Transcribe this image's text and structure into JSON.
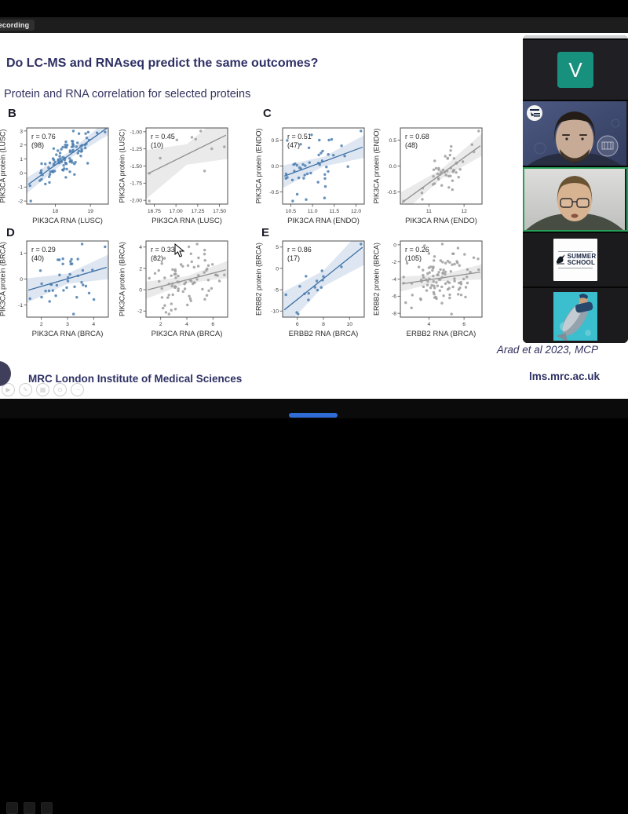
{
  "meeting": {
    "recording_label": "Recording",
    "participants": [
      {
        "label": "V",
        "initial": "V",
        "accent": "#17907d",
        "type": "initial-tile"
      },
      {
        "label": "bearded man on blue background",
        "type": "video",
        "badge": "summer-school-badge",
        "watermark": "university-crest"
      },
      {
        "label": "speaker with glasses",
        "type": "video",
        "active": true,
        "active_border": "#27a157"
      },
      {
        "label": "SUMMER SCHOOL",
        "logo_lines": [
          "SUMMER",
          "SCHOOL"
        ],
        "type": "logo-tile"
      },
      {
        "label": "diver with fish photo",
        "type": "photo-tile"
      }
    ]
  },
  "slide": {
    "title": "Do LC-MS and RNAseq predict the same outcomes?",
    "subtitle": "Protein and RNA correlation for selected proteins",
    "panels": [
      "B",
      "C",
      "D",
      "E"
    ],
    "citation": "Arad et al 2023, MCP",
    "footer": {
      "org": "MRC London Institute of Medical Sciences",
      "website": "lms.mrc.ac.uk",
      "controls": [
        {
          "icon": "play"
        },
        {
          "icon": "pen"
        },
        {
          "icon": "grid"
        },
        {
          "icon": "zoom"
        },
        {
          "icon": "more"
        }
      ]
    }
  },
  "colors": {
    "brand_navy": "#2e3064",
    "scatter_blue": "#4A7DB0",
    "scatter_gray": "#9C9C9C",
    "active_speaker_green": "#27a157",
    "teal_tile": "#17907d"
  },
  "chart_data": [
    {
      "type": "scatter",
      "panel": "B",
      "variant": "blue",
      "r_label": "r = 0.76",
      "n_label": "(98)",
      "r": 0.76,
      "n": 98,
      "xlabel": "PIK3CA RNA (LUSC)",
      "ylabel": "PIK3CA protein (LUSC)",
      "xticks": [
        "18",
        "19"
      ],
      "yticks": [
        "3",
        "2",
        "1",
        "0",
        "-1",
        "-2"
      ],
      "xlim": [
        17.3,
        19.8
      ],
      "ylim": [
        -2.3,
        3.2
      ],
      "trend_band": true
    },
    {
      "type": "scatter",
      "panel": "B",
      "variant": "gray",
      "r_label": "r = 0.45",
      "n_label": "(10)",
      "r": 0.45,
      "n": 10,
      "xlabel": "PIK3CA RNA (LUSC)",
      "ylabel": "PIK3CA protein (LUSC)",
      "xticks": [
        "16.75",
        "17.00",
        "17.25",
        "17.50"
      ],
      "yticks": [
        "-1.00",
        "-1.25",
        "-1.50",
        "-1.75",
        "-2.00"
      ],
      "xlim": [
        16.65,
        17.55
      ],
      "ylim": [
        -2.15,
        -0.85
      ],
      "trend_band": true
    },
    {
      "type": "scatter",
      "panel": "C",
      "variant": "blue",
      "r_label": "r = 0.51",
      "n_label": "(47)",
      "r": 0.51,
      "n": 47,
      "xlabel": "PIK3CA RNA (ENDO)",
      "ylabel": "PIK3CA protein (ENDO)",
      "xticks": [
        "10.5",
        "11.0",
        "11.5",
        "12.0"
      ],
      "yticks": [
        "0.5",
        "0.0",
        "-0.5"
      ],
      "xlim": [
        10.4,
        12.05
      ],
      "ylim": [
        -0.9,
        0.75
      ],
      "trend_band": true
    },
    {
      "type": "scatter",
      "panel": "C",
      "variant": "gray",
      "r_label": "r = 0.68",
      "n_label": "(48)",
      "r": 0.68,
      "n": 48,
      "xlabel": "PIK3CA RNA (ENDO)",
      "ylabel": "PIK3CA protein (ENDO)",
      "xticks": [
        "11",
        "12"
      ],
      "yticks": [
        "0.5",
        "0.0",
        "-0.5"
      ],
      "xlim": [
        10.45,
        12.5
      ],
      "ylim": [
        -0.85,
        0.7
      ],
      "trend_band": true
    },
    {
      "type": "scatter",
      "panel": "D",
      "variant": "blue",
      "r_label": "r = 0.29",
      "n_label": "(40)",
      "r": 0.29,
      "n": 40,
      "xlabel": "PIK3CA RNA (BRCA)",
      "ylabel": "PIK3CA protein (BRCA)",
      "xticks": [
        "2",
        "3",
        "4"
      ],
      "yticks": [
        "1",
        "0",
        "-1"
      ],
      "xlim": [
        1.6,
        4.7
      ],
      "ylim": [
        -1.35,
        1.65
      ],
      "trend_band": true
    },
    {
      "type": "scatter",
      "panel": "D",
      "variant": "gray",
      "r_label": "r = 0.33",
      "n_label": "(82)",
      "r": 0.33,
      "n": 82,
      "xlabel": "PIK3CA RNA (BRCA)",
      "ylabel": "PIK3CA protein (BRCA)",
      "xticks": [
        "2",
        "4",
        "6"
      ],
      "yticks": [
        "4",
        "2",
        "0",
        "-2"
      ],
      "xlim": [
        0.6,
        6.6
      ],
      "ylim": [
        -2.1,
        4.4
      ],
      "trend_band": true
    },
    {
      "type": "scatter",
      "panel": "E",
      "variant": "blue",
      "r_label": "r = 0.86",
      "n_label": "(17)",
      "r": 0.86,
      "n": 17,
      "xlabel": "ERBB2 RNA (BRCA)",
      "ylabel": "ERBB2 protein (BRCA)",
      "xticks": [
        "6",
        "8",
        "10"
      ],
      "yticks": [
        "5",
        "0",
        "-5",
        "-10"
      ],
      "xlim": [
        5.2,
        11.4
      ],
      "ylim": [
        -10.5,
        8.5
      ],
      "trend_band": true
    },
    {
      "type": "scatter",
      "panel": "E",
      "variant": "gray",
      "r_label": "r = 0.26",
      "n_label": "(105)",
      "r": 0.26,
      "n": 105,
      "xlabel": "ERBB2 RNA (BRCA)",
      "ylabel": "ERBB2 protein (BRCA)",
      "xticks": [
        "4",
        "6"
      ],
      "yticks": [
        "0",
        "-2",
        "-4",
        "-6",
        "-8"
      ],
      "xlim": [
        2.8,
        7.4
      ],
      "ylim": [
        -8.4,
        0.2
      ],
      "trend_band": true
    }
  ]
}
